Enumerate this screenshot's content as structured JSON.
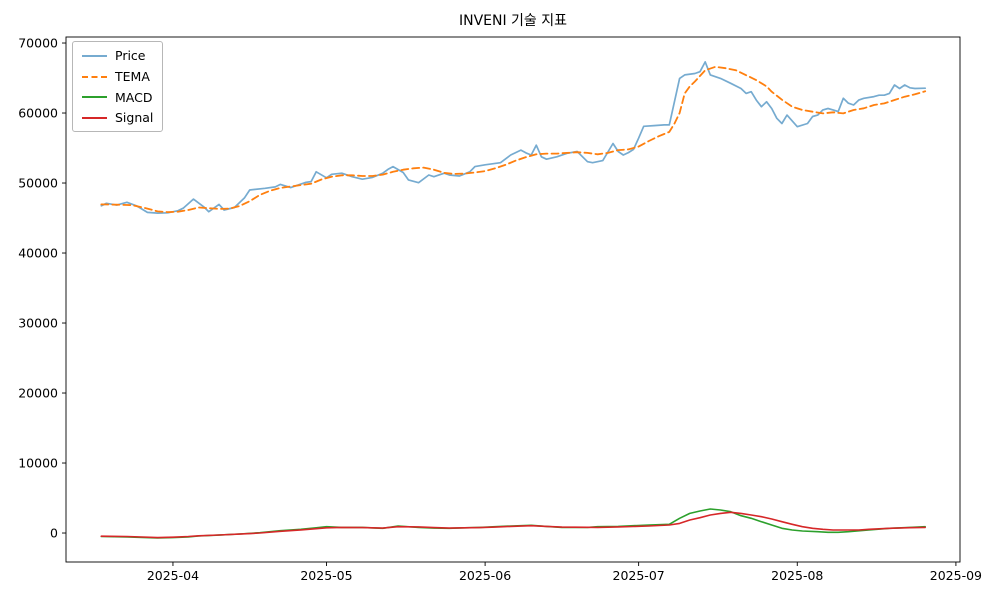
{
  "chart_data": {
    "type": "line",
    "title": "INVENI 기술 지표",
    "grid": false,
    "legend": {
      "position": "upper-left",
      "entries": [
        "Price",
        "TEMA",
        "MACD",
        "Signal"
      ]
    },
    "x_axis": {
      "unit": "date",
      "epoch_day0": "2025-03-18",
      "tick_labels": [
        "2025-04",
        "2025-05",
        "2025-06",
        "2025-07",
        "2025-08",
        "2025-09"
      ],
      "tick_days": [
        14,
        44,
        75,
        105,
        136,
        167
      ],
      "xlim_days": [
        -6.9,
        167.8
      ]
    },
    "y_axis": {
      "ticks": [
        0,
        10000,
        20000,
        30000,
        40000,
        50000,
        60000,
        70000
      ],
      "ylim": [
        -4140,
        70860
      ]
    },
    "series": [
      {
        "name": "Price",
        "color": "#76abd0",
        "style": "solid",
        "width": 1.7,
        "points": [
          [
            0,
            46750
          ],
          [
            1,
            47100
          ],
          [
            3,
            46850
          ],
          [
            5,
            47250
          ],
          [
            7,
            46700
          ],
          [
            9,
            45800
          ],
          [
            11,
            45700
          ],
          [
            13,
            45750
          ],
          [
            15,
            46050
          ],
          [
            16,
            46400
          ],
          [
            18,
            47700
          ],
          [
            20,
            46600
          ],
          [
            21,
            45900
          ],
          [
            23,
            46950
          ],
          [
            24,
            46150
          ],
          [
            26,
            46500
          ],
          [
            28,
            47900
          ],
          [
            29,
            49000
          ],
          [
            32,
            49250
          ],
          [
            34,
            49450
          ],
          [
            35,
            49800
          ],
          [
            37,
            49350
          ],
          [
            40,
            50100
          ],
          [
            41,
            50200
          ],
          [
            42,
            51600
          ],
          [
            44,
            50750
          ],
          [
            45,
            51250
          ],
          [
            47,
            51400
          ],
          [
            49,
            50900
          ],
          [
            51,
            50550
          ],
          [
            53,
            50800
          ],
          [
            55,
            51400
          ],
          [
            56,
            51950
          ],
          [
            57,
            52350
          ],
          [
            59,
            51500
          ],
          [
            60,
            50450
          ],
          [
            62,
            50050
          ],
          [
            64,
            51150
          ],
          [
            65,
            50900
          ],
          [
            67,
            51400
          ],
          [
            68,
            51150
          ],
          [
            70,
            51000
          ],
          [
            72,
            51600
          ],
          [
            73,
            52350
          ],
          [
            75,
            52600
          ],
          [
            78,
            52900
          ],
          [
            80,
            54000
          ],
          [
            82,
            54700
          ],
          [
            83,
            54300
          ],
          [
            84,
            54000
          ],
          [
            85,
            55400
          ],
          [
            86,
            53750
          ],
          [
            87,
            53400
          ],
          [
            89,
            53750
          ],
          [
            91,
            54250
          ],
          [
            93,
            54500
          ],
          [
            95,
            53050
          ],
          [
            96,
            52900
          ],
          [
            98,
            53200
          ],
          [
            100,
            55650
          ],
          [
            101,
            54500
          ],
          [
            102,
            54000
          ],
          [
            103,
            54350
          ],
          [
            104,
            54800
          ],
          [
            105,
            56400
          ],
          [
            106,
            58100
          ],
          [
            108,
            58200
          ],
          [
            110,
            58300
          ],
          [
            111,
            58300
          ],
          [
            113,
            64950
          ],
          [
            114,
            65450
          ],
          [
            116,
            65650
          ],
          [
            117,
            65900
          ],
          [
            118,
            67300
          ],
          [
            119,
            65450
          ],
          [
            121,
            64950
          ],
          [
            123,
            64250
          ],
          [
            125,
            63500
          ],
          [
            126,
            62800
          ],
          [
            127,
            63050
          ],
          [
            128,
            61850
          ],
          [
            129,
            60900
          ],
          [
            130,
            61600
          ],
          [
            131,
            60650
          ],
          [
            132,
            59250
          ],
          [
            133,
            58500
          ],
          [
            134,
            59700
          ],
          [
            136,
            58050
          ],
          [
            138,
            58500
          ],
          [
            139,
            59500
          ],
          [
            140,
            59700
          ],
          [
            141,
            60450
          ],
          [
            142,
            60650
          ],
          [
            143,
            60450
          ],
          [
            144,
            60200
          ],
          [
            145,
            62100
          ],
          [
            146,
            61400
          ],
          [
            147,
            61150
          ],
          [
            148,
            61850
          ],
          [
            149,
            62100
          ],
          [
            151,
            62350
          ],
          [
            152,
            62550
          ],
          [
            153,
            62550
          ],
          [
            154,
            62800
          ],
          [
            155,
            64000
          ],
          [
            156,
            63500
          ],
          [
            157,
            64000
          ],
          [
            158,
            63600
          ],
          [
            159,
            63500
          ],
          [
            161,
            63550
          ]
        ]
      },
      {
        "name": "TEMA",
        "color": "#ff7f0e",
        "style": "dashed",
        "width": 1.8,
        "points": [
          [
            0,
            46950
          ],
          [
            3,
            46900
          ],
          [
            6,
            46850
          ],
          [
            9,
            46350
          ],
          [
            11,
            45950
          ],
          [
            13,
            45850
          ],
          [
            15,
            45900
          ],
          [
            17,
            46150
          ],
          [
            19,
            46500
          ],
          [
            21,
            46400
          ],
          [
            23,
            46300
          ],
          [
            25,
            46350
          ],
          [
            27,
            46700
          ],
          [
            29,
            47400
          ],
          [
            31,
            48300
          ],
          [
            33,
            48900
          ],
          [
            35,
            49300
          ],
          [
            37,
            49500
          ],
          [
            39,
            49700
          ],
          [
            41,
            49900
          ],
          [
            43,
            50500
          ],
          [
            45,
            50900
          ],
          [
            47,
            51100
          ],
          [
            49,
            51100
          ],
          [
            51,
            51000
          ],
          [
            53,
            51000
          ],
          [
            55,
            51200
          ],
          [
            57,
            51600
          ],
          [
            59,
            51900
          ],
          [
            61,
            52100
          ],
          [
            63,
            52200
          ],
          [
            65,
            51900
          ],
          [
            67,
            51450
          ],
          [
            69,
            51300
          ],
          [
            71,
            51350
          ],
          [
            73,
            51500
          ],
          [
            75,
            51700
          ],
          [
            77,
            52100
          ],
          [
            79,
            52600
          ],
          [
            81,
            53200
          ],
          [
            83,
            53700
          ],
          [
            85,
            54100
          ],
          [
            87,
            54200
          ],
          [
            89,
            54200
          ],
          [
            91,
            54300
          ],
          [
            93,
            54400
          ],
          [
            95,
            54300
          ],
          [
            97,
            54100
          ],
          [
            99,
            54300
          ],
          [
            101,
            54700
          ],
          [
            103,
            54800
          ],
          [
            105,
            55200
          ],
          [
            107,
            56000
          ],
          [
            109,
            56700
          ],
          [
            111,
            57300
          ],
          [
            112,
            58500
          ],
          [
            113,
            60000
          ],
          [
            114,
            62800
          ],
          [
            115,
            63800
          ],
          [
            116,
            64500
          ],
          [
            118,
            66100
          ],
          [
            120,
            66600
          ],
          [
            122,
            66400
          ],
          [
            124,
            66100
          ],
          [
            126,
            65400
          ],
          [
            128,
            64700
          ],
          [
            130,
            63800
          ],
          [
            131,
            63050
          ],
          [
            133,
            61900
          ],
          [
            135,
            60900
          ],
          [
            137,
            60430
          ],
          [
            139,
            60190
          ],
          [
            141,
            59950
          ],
          [
            143,
            60100
          ],
          [
            145,
            59950
          ],
          [
            147,
            60430
          ],
          [
            149,
            60670
          ],
          [
            151,
            61140
          ],
          [
            153,
            61380
          ],
          [
            155,
            61860
          ],
          [
            157,
            62330
          ],
          [
            159,
            62670
          ],
          [
            161,
            63100
          ]
        ]
      },
      {
        "name": "MACD",
        "color": "#2ca02c",
        "style": "solid",
        "width": 1.6,
        "points": [
          [
            0,
            -500
          ],
          [
            5,
            -550
          ],
          [
            8,
            -620
          ],
          [
            11,
            -700
          ],
          [
            14,
            -650
          ],
          [
            17,
            -550
          ],
          [
            19,
            -430
          ],
          [
            23,
            -300
          ],
          [
            27,
            -140
          ],
          [
            31,
            40
          ],
          [
            35,
            330
          ],
          [
            39,
            530
          ],
          [
            42,
            750
          ],
          [
            44,
            900
          ],
          [
            47,
            810
          ],
          [
            51,
            810
          ],
          [
            55,
            670
          ],
          [
            58,
            1000
          ],
          [
            62,
            810
          ],
          [
            65,
            700
          ],
          [
            68,
            670
          ],
          [
            71,
            740
          ],
          [
            74,
            810
          ],
          [
            77,
            900
          ],
          [
            80,
            1000
          ],
          [
            84,
            1100
          ],
          [
            87,
            950
          ],
          [
            90,
            810
          ],
          [
            95,
            810
          ],
          [
            97,
            900
          ],
          [
            101,
            950
          ],
          [
            104,
            1050
          ],
          [
            107,
            1140
          ],
          [
            111,
            1240
          ],
          [
            113,
            2100
          ],
          [
            115,
            2810
          ],
          [
            117,
            3140
          ],
          [
            119,
            3430
          ],
          [
            121,
            3290
          ],
          [
            123,
            3050
          ],
          [
            125,
            2470
          ],
          [
            127,
            2100
          ],
          [
            129,
            1620
          ],
          [
            131,
            1140
          ],
          [
            133,
            670
          ],
          [
            135,
            430
          ],
          [
            137,
            290
          ],
          [
            140,
            190
          ],
          [
            142,
            100
          ],
          [
            144,
            100
          ],
          [
            146,
            190
          ],
          [
            150,
            430
          ],
          [
            154,
            670
          ],
          [
            158,
            810
          ],
          [
            161,
            900
          ]
        ]
      },
      {
        "name": "Signal",
        "color": "#d62728",
        "style": "solid",
        "width": 1.6,
        "points": [
          [
            0,
            -450
          ],
          [
            5,
            -500
          ],
          [
            8,
            -570
          ],
          [
            11,
            -650
          ],
          [
            14,
            -600
          ],
          [
            17,
            -500
          ],
          [
            19,
            -400
          ],
          [
            23,
            -280
          ],
          [
            27,
            -150
          ],
          [
            31,
            0
          ],
          [
            35,
            250
          ],
          [
            39,
            450
          ],
          [
            42,
            620
          ],
          [
            44,
            750
          ],
          [
            47,
            800
          ],
          [
            51,
            780
          ],
          [
            55,
            700
          ],
          [
            58,
            900
          ],
          [
            62,
            870
          ],
          [
            65,
            780
          ],
          [
            68,
            700
          ],
          [
            71,
            740
          ],
          [
            74,
            780
          ],
          [
            77,
            850
          ],
          [
            80,
            950
          ],
          [
            84,
            1050
          ],
          [
            87,
            950
          ],
          [
            90,
            850
          ],
          [
            95,
            820
          ],
          [
            97,
            810
          ],
          [
            101,
            870
          ],
          [
            104,
            930
          ],
          [
            107,
            1000
          ],
          [
            111,
            1140
          ],
          [
            113,
            1380
          ],
          [
            115,
            1860
          ],
          [
            117,
            2190
          ],
          [
            119,
            2570
          ],
          [
            121,
            2810
          ],
          [
            123,
            2960
          ],
          [
            125,
            2810
          ],
          [
            127,
            2570
          ],
          [
            129,
            2330
          ],
          [
            131,
            2000
          ],
          [
            133,
            1620
          ],
          [
            135,
            1240
          ],
          [
            137,
            900
          ],
          [
            139,
            670
          ],
          [
            141,
            530
          ],
          [
            143,
            430
          ],
          [
            146,
            430
          ],
          [
            148,
            430
          ],
          [
            150,
            530
          ],
          [
            154,
            670
          ],
          [
            158,
            760
          ],
          [
            161,
            810
          ]
        ]
      }
    ]
  }
}
